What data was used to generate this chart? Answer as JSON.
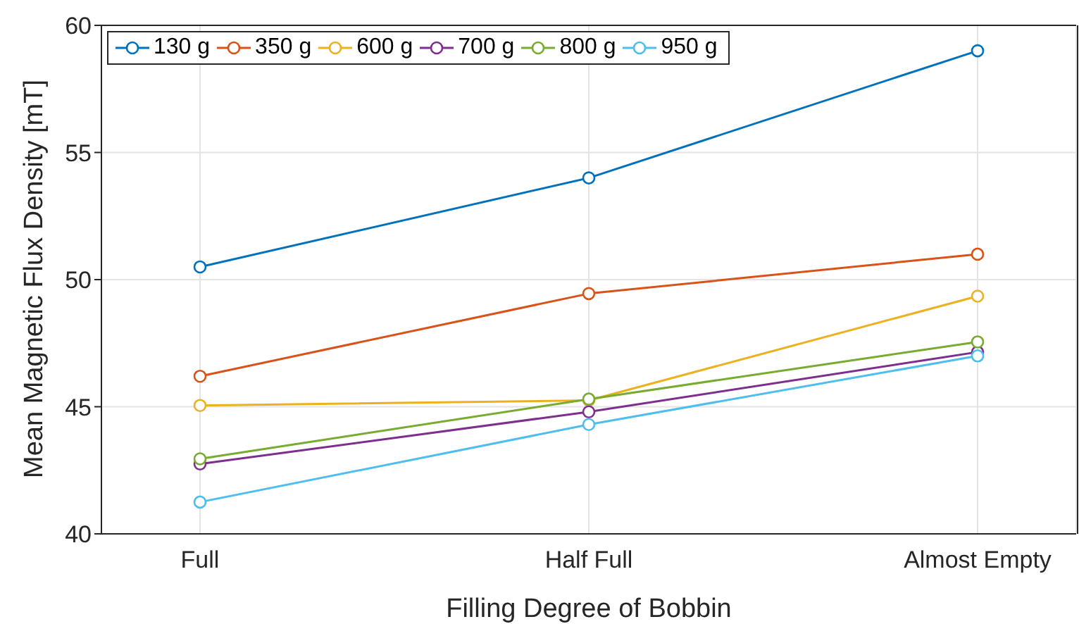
{
  "chart_data": {
    "type": "line",
    "xlabel": "Filling Degree of Bobbin",
    "ylabel": "Mean Magnetic Flux Density [mT]",
    "categories": [
      "Full",
      "Half Full",
      "Almost Empty"
    ],
    "series": [
      {
        "name": "130 g",
        "color": "#0072bd",
        "values": [
          50.5,
          54.0,
          59.0
        ]
      },
      {
        "name": "350 g",
        "color": "#d95319",
        "values": [
          46.2,
          49.45,
          51.0
        ]
      },
      {
        "name": "600 g",
        "color": "#edb120",
        "values": [
          45.05,
          45.25,
          49.35
        ]
      },
      {
        "name": "700 g",
        "color": "#7e2f8e",
        "values": [
          42.75,
          44.8,
          47.15
        ]
      },
      {
        "name": "800 g",
        "color": "#77ac30",
        "values": [
          42.95,
          45.3,
          47.55
        ]
      },
      {
        "name": "950 g",
        "color": "#4dbeee",
        "values": [
          41.25,
          44.3,
          47.0
        ]
      }
    ],
    "ylim": [
      40,
      60
    ],
    "yticks": [
      40,
      45,
      50,
      55,
      60
    ],
    "grid": true,
    "legend": "top left",
    "marker": "circle",
    "line_style": "solid"
  }
}
